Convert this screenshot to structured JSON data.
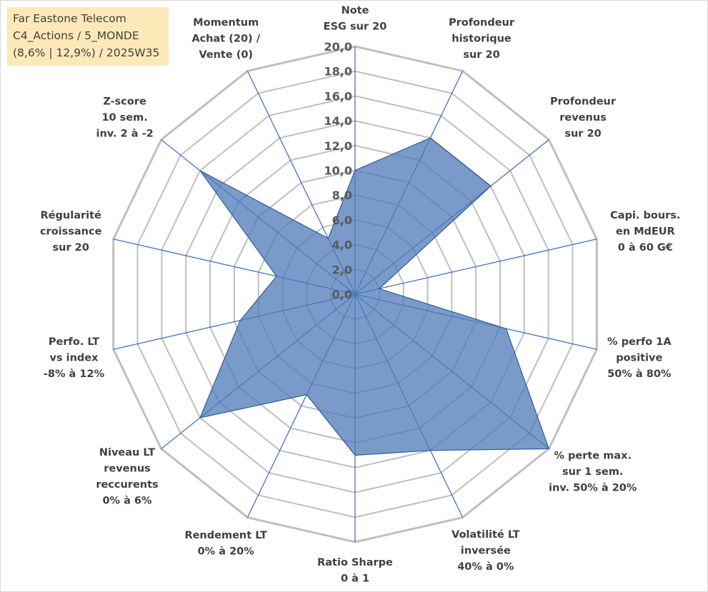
{
  "title_box": {
    "line1": "Far Eastone Telecom",
    "line2": "C4_Actions / 5_MONDE",
    "line3": "(8,6% | 12,9%) / 2025W35"
  },
  "colors": {
    "grid": "#bfbfbf",
    "spokes": "#4472c4",
    "fill": "#4e79b8",
    "fill_stroke": "#2f5a9e",
    "title_bg": "#fde9b8"
  },
  "chart_data": {
    "type": "radar",
    "title": "",
    "r_min": 0,
    "r_max": 20,
    "r_step": 2,
    "grid": true,
    "tick_labels": [
      "0,0",
      "2,0",
      "4,0",
      "6,0",
      "8,0",
      "10,0",
      "12,0",
      "14,0",
      "16,0",
      "18,0",
      "20,0"
    ],
    "axes": [
      {
        "label": [
          "Note",
          "ESG sur 20"
        ],
        "value": 10.0
      },
      {
        "label": [
          "Profondeur",
          "historique",
          "sur 20"
        ],
        "value": 14.0
      },
      {
        "label": [
          "Profondeur",
          "revenus",
          "sur 20"
        ],
        "value": 14.0
      },
      {
        "label": [
          "Capi. bours.",
          "en MdEUR",
          "0 à 60 G€"
        ],
        "value": 2.0
      },
      {
        "label": [
          "% perfo 1A",
          "positive",
          "50% à 80%"
        ],
        "value": 12.5
      },
      {
        "label": [
          "% perte max.",
          "sur 1 sem.",
          "inv. 50% à 20%"
        ],
        "value": 20.0
      },
      {
        "label": [
          "Volatilité LT",
          "inversée",
          "40% à 0%"
        ],
        "value": 14.0
      },
      {
        "label": [
          "Ratio Sharpe",
          "0 à 1"
        ],
        "value": 13.0
      },
      {
        "label": [
          "Rendement LT",
          "0% à 20%"
        ],
        "value": 9.0
      },
      {
        "label": [
          "Niveau LT",
          "revenus",
          "reccurents",
          "0% à 6%"
        ],
        "value": 16.0
      },
      {
        "label": [
          "Perfo. LT",
          "vs index",
          "-8% à 12%"
        ],
        "value": 9.5
      },
      {
        "label": [
          "Régularité",
          "croissance",
          "sur 20"
        ],
        "value": 6.5
      },
      {
        "label": [
          "Z-score",
          "10 sem.",
          "inv. 2 à -2"
        ],
        "value": 16.0
      },
      {
        "label": [
          "Momentum",
          "Achat (20) /",
          "Vente (0)"
        ],
        "value": 5.0
      }
    ]
  }
}
